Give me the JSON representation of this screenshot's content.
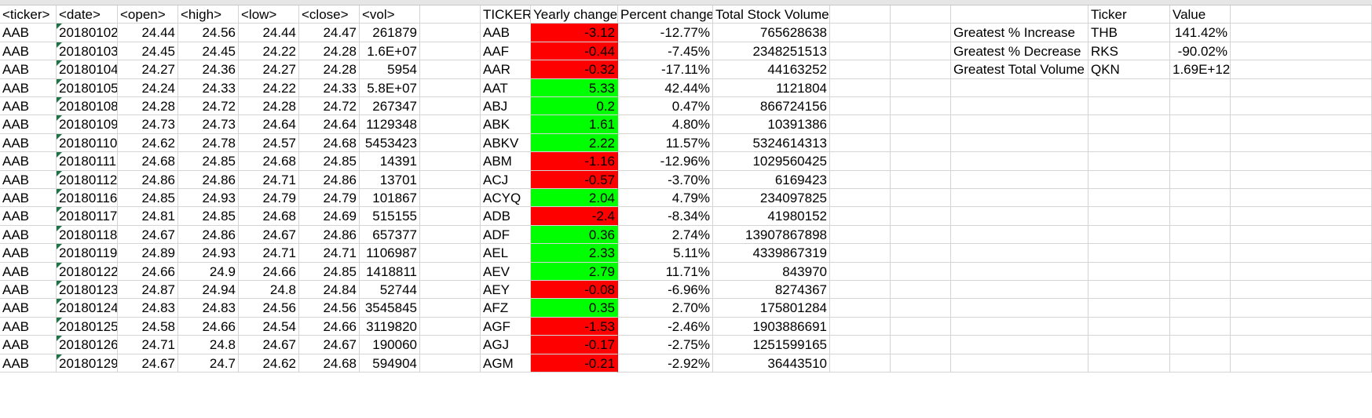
{
  "headers": {
    "A": "<ticker>",
    "B": "<date>",
    "C": "<open>",
    "D": "<high>",
    "E": "<low>",
    "F": "<close>",
    "G": "<vol>",
    "I": "TICKER",
    "J": "Yearly change",
    "K": "Percent change",
    "L": "Total Stock Volume",
    "P": "Ticker",
    "Q": "Value"
  },
  "raw_rows": [
    [
      "AAB",
      "20180102",
      "24.44",
      "24.56",
      "24.44",
      "24.47",
      "261879"
    ],
    [
      "AAB",
      "20180103",
      "24.45",
      "24.45",
      "24.22",
      "24.28",
      "1.6E+07"
    ],
    [
      "AAB",
      "20180104",
      "24.27",
      "24.36",
      "24.27",
      "24.28",
      "5954"
    ],
    [
      "AAB",
      "20180105",
      "24.24",
      "24.33",
      "24.22",
      "24.33",
      "5.8E+07"
    ],
    [
      "AAB",
      "20180108",
      "24.28",
      "24.72",
      "24.28",
      "24.72",
      "267347"
    ],
    [
      "AAB",
      "20180109",
      "24.73",
      "24.73",
      "24.64",
      "24.64",
      "1129348"
    ],
    [
      "AAB",
      "20180110",
      "24.62",
      "24.78",
      "24.57",
      "24.68",
      "5453423"
    ],
    [
      "AAB",
      "20180111",
      "24.68",
      "24.85",
      "24.68",
      "24.85",
      "14391"
    ],
    [
      "AAB",
      "20180112",
      "24.86",
      "24.86",
      "24.71",
      "24.86",
      "13701"
    ],
    [
      "AAB",
      "20180116",
      "24.85",
      "24.93",
      "24.79",
      "24.79",
      "101867"
    ],
    [
      "AAB",
      "20180117",
      "24.81",
      "24.85",
      "24.68",
      "24.69",
      "515155"
    ],
    [
      "AAB",
      "20180118",
      "24.67",
      "24.86",
      "24.67",
      "24.86",
      "657377"
    ],
    [
      "AAB",
      "20180119",
      "24.89",
      "24.93",
      "24.71",
      "24.71",
      "1106987"
    ],
    [
      "AAB",
      "20180122",
      "24.66",
      "24.9",
      "24.66",
      "24.85",
      "1418811"
    ],
    [
      "AAB",
      "20180123",
      "24.87",
      "24.94",
      "24.8",
      "24.84",
      "52744"
    ],
    [
      "AAB",
      "20180124",
      "24.83",
      "24.83",
      "24.56",
      "24.56",
      "3545845"
    ],
    [
      "AAB",
      "20180125",
      "24.58",
      "24.66",
      "24.54",
      "24.66",
      "3119820"
    ],
    [
      "AAB",
      "20180126",
      "24.71",
      "24.8",
      "24.67",
      "24.67",
      "190060"
    ],
    [
      "AAB",
      "20180129",
      "24.67",
      "24.7",
      "24.62",
      "24.68",
      "594904"
    ]
  ],
  "summary_rows": [
    {
      "ticker": "AAB",
      "change": "-3.12",
      "pct": "-12.77%",
      "vol": "765628638",
      "color": "red"
    },
    {
      "ticker": "AAF",
      "change": "-0.44",
      "pct": "-7.45%",
      "vol": "2348251513",
      "color": "red"
    },
    {
      "ticker": "AAR",
      "change": "-0.32",
      "pct": "-17.11%",
      "vol": "44163252",
      "color": "red"
    },
    {
      "ticker": "AAT",
      "change": "5.33",
      "pct": "42.44%",
      "vol": "1121804",
      "color": "green"
    },
    {
      "ticker": "ABJ",
      "change": "0.2",
      "pct": "0.47%",
      "vol": "866724156",
      "color": "green"
    },
    {
      "ticker": "ABK",
      "change": "1.61",
      "pct": "4.80%",
      "vol": "10391386",
      "color": "green"
    },
    {
      "ticker": "ABKV",
      "change": "2.22",
      "pct": "11.57%",
      "vol": "5324614313",
      "color": "green"
    },
    {
      "ticker": "ABM",
      "change": "-1.16",
      "pct": "-12.96%",
      "vol": "1029560425",
      "color": "red"
    },
    {
      "ticker": "ACJ",
      "change": "-0.57",
      "pct": "-3.70%",
      "vol": "6169423",
      "color": "red"
    },
    {
      "ticker": "ACYQ",
      "change": "2.04",
      "pct": "4.79%",
      "vol": "234097825",
      "color": "green"
    },
    {
      "ticker": "ADB",
      "change": "-2.4",
      "pct": "-8.34%",
      "vol": "41980152",
      "color": "red"
    },
    {
      "ticker": "ADF",
      "change": "0.36",
      "pct": "2.74%",
      "vol": "13907867898",
      "color": "green"
    },
    {
      "ticker": "AEL",
      "change": "2.33",
      "pct": "5.11%",
      "vol": "4339867319",
      "color": "green"
    },
    {
      "ticker": "AEV",
      "change": "2.79",
      "pct": "11.71%",
      "vol": "843970",
      "color": "green"
    },
    {
      "ticker": "AEY",
      "change": "-0.08",
      "pct": "-6.96%",
      "vol": "8274367",
      "color": "red"
    },
    {
      "ticker": "AFZ",
      "change": "0.35",
      "pct": "2.70%",
      "vol": "175801284",
      "color": "green"
    },
    {
      "ticker": "AGF",
      "change": "-1.53",
      "pct": "-2.46%",
      "vol": "1903886691",
      "color": "red"
    },
    {
      "ticker": "AGJ",
      "change": "-0.17",
      "pct": "-2.75%",
      "vol": "1251599165",
      "color": "red"
    },
    {
      "ticker": "AGM",
      "change": "-0.21",
      "pct": "-2.92%",
      "vol": "36443510",
      "color": "red"
    }
  ],
  "greatest": [
    {
      "label": "Greatest % Increase",
      "ticker": "THB",
      "value": "141.42%"
    },
    {
      "label": "Greatest % Decrease",
      "ticker": "RKS",
      "value": "-90.02%"
    },
    {
      "label": "Greatest Total Volume",
      "ticker": "QKN",
      "value": "1.69E+12"
    }
  ],
  "colors": {
    "green": "#00ff00",
    "red": "#ff0000",
    "grid": "#d4d4d4"
  }
}
